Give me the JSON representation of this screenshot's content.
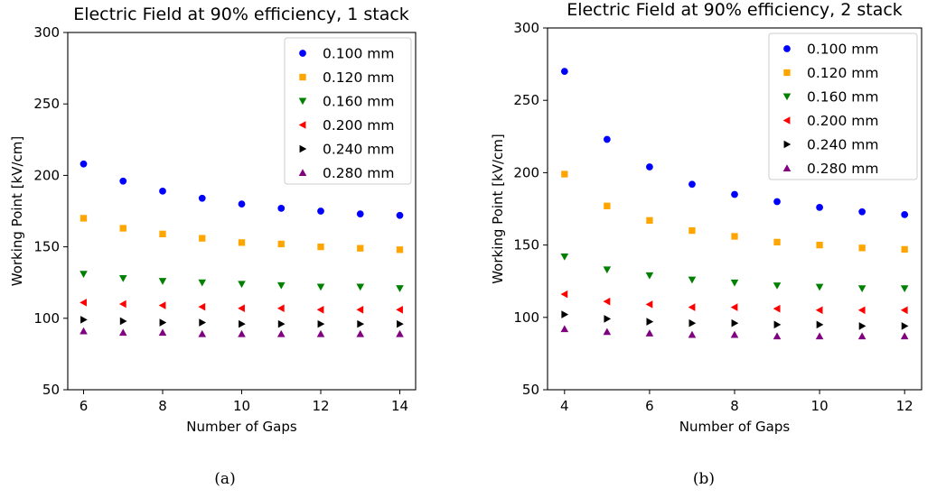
{
  "chart_data": [
    {
      "type": "scatter",
      "caption": "(a)",
      "title": "Electric Field at 90% efficiency, 1 stack",
      "xlabel": "Number of Gaps",
      "ylabel": "Working Point [kV/cm]",
      "xlim": [
        5.6,
        14.4
      ],
      "ylim": [
        50,
        300
      ],
      "xticks": [
        6,
        8,
        10,
        12,
        14
      ],
      "yticks": [
        50,
        100,
        150,
        200,
        250,
        300
      ],
      "grid": false,
      "legend_position": "top-right",
      "x": [
        6,
        7,
        8,
        9,
        10,
        11,
        12,
        13,
        14
      ],
      "series": [
        {
          "name": "0.100 mm",
          "color": "#0000ff",
          "marker": "circle",
          "values": [
            208,
            196,
            189,
            184,
            180,
            177,
            175,
            173,
            172
          ]
        },
        {
          "name": "0.120 mm",
          "color": "#ffa500",
          "marker": "square",
          "values": [
            170,
            163,
            159,
            156,
            153,
            152,
            150,
            149,
            148
          ]
        },
        {
          "name": "0.160 mm",
          "color": "#008000",
          "marker": "triangle-down",
          "values": [
            131,
            128,
            126,
            125,
            124,
            123,
            122,
            122,
            121
          ]
        },
        {
          "name": "0.200 mm",
          "color": "#ff0000",
          "marker": "triangle-left",
          "values": [
            111,
            110,
            109,
            108,
            107,
            107,
            106,
            106,
            106
          ]
        },
        {
          "name": "0.240 mm",
          "color": "#000000",
          "marker": "triangle-right",
          "values": [
            99,
            98,
            97,
            97,
            96,
            96,
            96,
            96,
            96
          ]
        },
        {
          "name": "0.280 mm",
          "color": "#800080",
          "marker": "triangle-up",
          "values": [
            91,
            90,
            90,
            89,
            89,
            89,
            89,
            89,
            89
          ]
        }
      ]
    },
    {
      "type": "scatter",
      "caption": "(b)",
      "title": "Electric Field at 90% efficiency, 2 stack",
      "xlabel": "Number of Gaps",
      "ylabel": "Working Point [kV/cm]",
      "xlim": [
        3.6,
        12.4
      ],
      "ylim": [
        50,
        300
      ],
      "xticks": [
        4,
        6,
        8,
        10,
        12
      ],
      "yticks": [
        50,
        100,
        150,
        200,
        250,
        300
      ],
      "grid": false,
      "legend_position": "top-right",
      "x": [
        4,
        5,
        6,
        7,
        8,
        9,
        10,
        11,
        12
      ],
      "series": [
        {
          "name": "0.100 mm",
          "color": "#0000ff",
          "marker": "circle",
          "values": [
            270,
            223,
            204,
            192,
            185,
            180,
            176,
            173,
            171
          ]
        },
        {
          "name": "0.120 mm",
          "color": "#ffa500",
          "marker": "square",
          "values": [
            199,
            177,
            167,
            160,
            156,
            152,
            150,
            148,
            147
          ]
        },
        {
          "name": "0.160 mm",
          "color": "#008000",
          "marker": "triangle-down",
          "values": [
            142,
            133,
            129,
            126,
            124,
            122,
            121,
            120,
            120
          ]
        },
        {
          "name": "0.200 mm",
          "color": "#ff0000",
          "marker": "triangle-left",
          "values": [
            116,
            111,
            109,
            107,
            107,
            106,
            105,
            105,
            105
          ]
        },
        {
          "name": "0.240 mm",
          "color": "#000000",
          "marker": "triangle-right",
          "values": [
            102,
            99,
            97,
            96,
            96,
            95,
            95,
            94,
            94
          ]
        },
        {
          "name": "0.280 mm",
          "color": "#800080",
          "marker": "triangle-up",
          "values": [
            92,
            90,
            89,
            88,
            88,
            87,
            87,
            87,
            87
          ]
        }
      ]
    }
  ]
}
